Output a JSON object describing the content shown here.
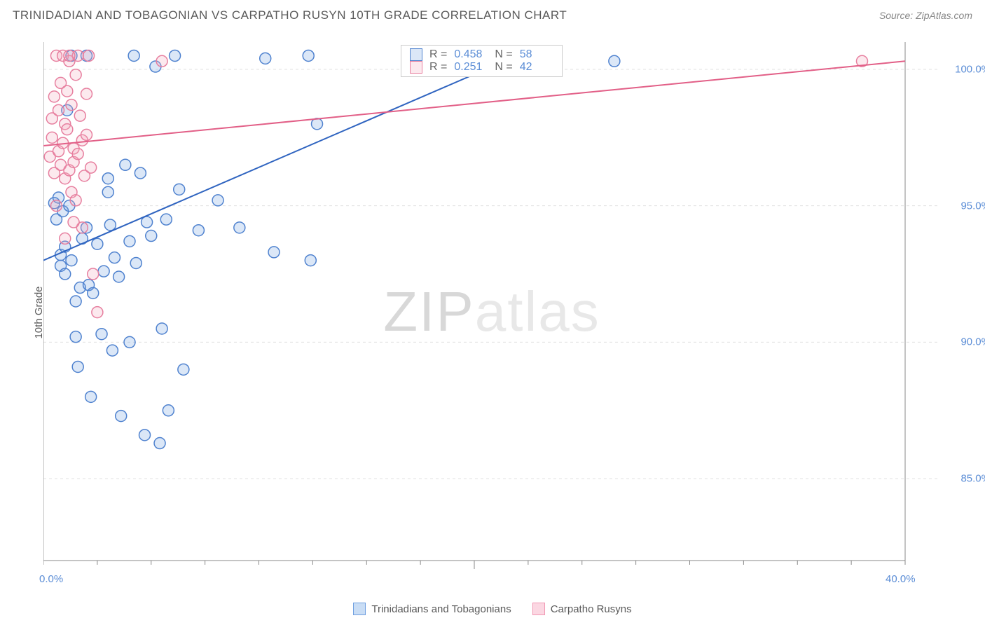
{
  "header": {
    "title": "TRINIDADIAN AND TOBAGONIAN VS CARPATHO RUSYN 10TH GRADE CORRELATION CHART",
    "source": "Source: ZipAtlas.com"
  },
  "y_axis_label": "10th Grade",
  "watermark": {
    "part1": "ZIP",
    "part2": "atlas"
  },
  "chart": {
    "type": "scatter",
    "background_color": "#ffffff",
    "grid_color": "#e0e0e0",
    "axis_color": "#888888",
    "xlim": [
      0,
      40
    ],
    "ylim": [
      82,
      101
    ],
    "yticks": [
      85.0,
      90.0,
      95.0,
      100.0
    ],
    "ytick_labels": [
      "85.0%",
      "90.0%",
      "95.0%",
      "100.0%"
    ],
    "xtick_min": {
      "value": 0,
      "label": "0.0%"
    },
    "xtick_max": {
      "value": 40,
      "label": "40.0%"
    },
    "xtick_minor_step": 2.5,
    "marker_radius": 8,
    "marker_stroke_width": 1.5,
    "marker_fill_opacity": 0.25,
    "line_width": 2.0
  },
  "series": [
    {
      "name": "Trinidadians and Tobagonians",
      "color": "#6f9fe0",
      "stroke": "#4f82cf",
      "line_color": "#2f64c0",
      "R": "0.458",
      "N": "58",
      "trend": {
        "x1": 0,
        "y1": 93.0,
        "x2": 22,
        "y2": 100.5
      },
      "points": [
        [
          0.5,
          95.1
        ],
        [
          0.6,
          94.5
        ],
        [
          0.7,
          95.3
        ],
        [
          0.8,
          93.2
        ],
        [
          0.8,
          92.8
        ],
        [
          0.9,
          94.8
        ],
        [
          1.0,
          93.5
        ],
        [
          1.0,
          92.5
        ],
        [
          1.1,
          98.5
        ],
        [
          1.2,
          95.0
        ],
        [
          1.3,
          100.5
        ],
        [
          1.3,
          93.0
        ],
        [
          1.5,
          91.5
        ],
        [
          1.5,
          90.2
        ],
        [
          1.6,
          89.1
        ],
        [
          1.7,
          92.0
        ],
        [
          1.8,
          93.8
        ],
        [
          2.0,
          100.5
        ],
        [
          2.0,
          94.2
        ],
        [
          2.1,
          92.1
        ],
        [
          2.2,
          88.0
        ],
        [
          2.3,
          91.8
        ],
        [
          2.5,
          93.6
        ],
        [
          2.7,
          90.3
        ],
        [
          2.8,
          92.6
        ],
        [
          3.0,
          96.0
        ],
        [
          3.0,
          95.5
        ],
        [
          3.1,
          94.3
        ],
        [
          3.2,
          89.7
        ],
        [
          3.3,
          93.1
        ],
        [
          3.5,
          92.4
        ],
        [
          3.6,
          87.3
        ],
        [
          3.8,
          96.5
        ],
        [
          4.0,
          93.7
        ],
        [
          4.0,
          90.0
        ],
        [
          4.2,
          100.5
        ],
        [
          4.3,
          92.9
        ],
        [
          4.5,
          96.2
        ],
        [
          4.7,
          86.6
        ],
        [
          4.8,
          94.4
        ],
        [
          5.0,
          93.9
        ],
        [
          5.2,
          100.1
        ],
        [
          5.5,
          90.5
        ],
        [
          5.7,
          94.5
        ],
        [
          5.4,
          86.3
        ],
        [
          5.8,
          87.5
        ],
        [
          6.1,
          100.5
        ],
        [
          6.3,
          95.6
        ],
        [
          6.5,
          89.0
        ],
        [
          7.2,
          94.1
        ],
        [
          8.1,
          95.2
        ],
        [
          9.1,
          94.2
        ],
        [
          10.3,
          100.4
        ],
        [
          10.7,
          93.3
        ],
        [
          12.3,
          100.5
        ],
        [
          12.7,
          98.0
        ],
        [
          12.4,
          93.0
        ],
        [
          26.5,
          100.3
        ]
      ]
    },
    {
      "name": "Carpatho Rusyns",
      "color": "#f4a6bd",
      "stroke": "#e77f9f",
      "line_color": "#e25f87",
      "R": "0.251",
      "N": "42",
      "trend": {
        "x1": 0,
        "y1": 97.2,
        "x2": 40,
        "y2": 100.3
      },
      "points": [
        [
          0.3,
          96.8
        ],
        [
          0.4,
          97.5
        ],
        [
          0.4,
          98.2
        ],
        [
          0.5,
          96.2
        ],
        [
          0.5,
          99.0
        ],
        [
          0.6,
          100.5
        ],
        [
          0.6,
          95.0
        ],
        [
          0.7,
          97.0
        ],
        [
          0.7,
          98.5
        ],
        [
          0.8,
          96.5
        ],
        [
          0.8,
          99.5
        ],
        [
          0.9,
          97.3
        ],
        [
          0.9,
          100.5
        ],
        [
          1.0,
          96.0
        ],
        [
          1.0,
          98.0
        ],
        [
          1.1,
          97.8
        ],
        [
          1.1,
          99.2
        ],
        [
          1.2,
          96.3
        ],
        [
          1.2,
          100.3
        ],
        [
          1.3,
          95.5
        ],
        [
          1.3,
          98.7
        ],
        [
          1.4,
          97.1
        ],
        [
          1.4,
          96.6
        ],
        [
          1.5,
          99.8
        ],
        [
          1.5,
          95.2
        ],
        [
          1.6,
          100.5
        ],
        [
          1.6,
          96.9
        ],
        [
          1.7,
          98.3
        ],
        [
          1.8,
          97.4
        ],
        [
          1.8,
          94.2
        ],
        [
          1.9,
          96.1
        ],
        [
          2.0,
          99.1
        ],
        [
          2.0,
          97.6
        ],
        [
          2.1,
          100.5
        ],
        [
          2.2,
          96.4
        ],
        [
          2.3,
          92.5
        ],
        [
          2.5,
          91.1
        ],
        [
          1.4,
          94.4
        ],
        [
          1.0,
          93.8
        ],
        [
          5.5,
          100.3
        ],
        [
          1.2,
          100.5
        ],
        [
          38.0,
          100.3
        ]
      ]
    }
  ],
  "legend_bottom": {
    "items": [
      {
        "label": "Trinidadians and Tobagonians",
        "fill": "#c9ddf5",
        "stroke": "#6f9fe0"
      },
      {
        "label": "Carpatho Rusyns",
        "fill": "#fbd7e2",
        "stroke": "#f198b3"
      }
    ]
  },
  "stat_box": {
    "r_label": "R =",
    "n_label": "N ="
  }
}
